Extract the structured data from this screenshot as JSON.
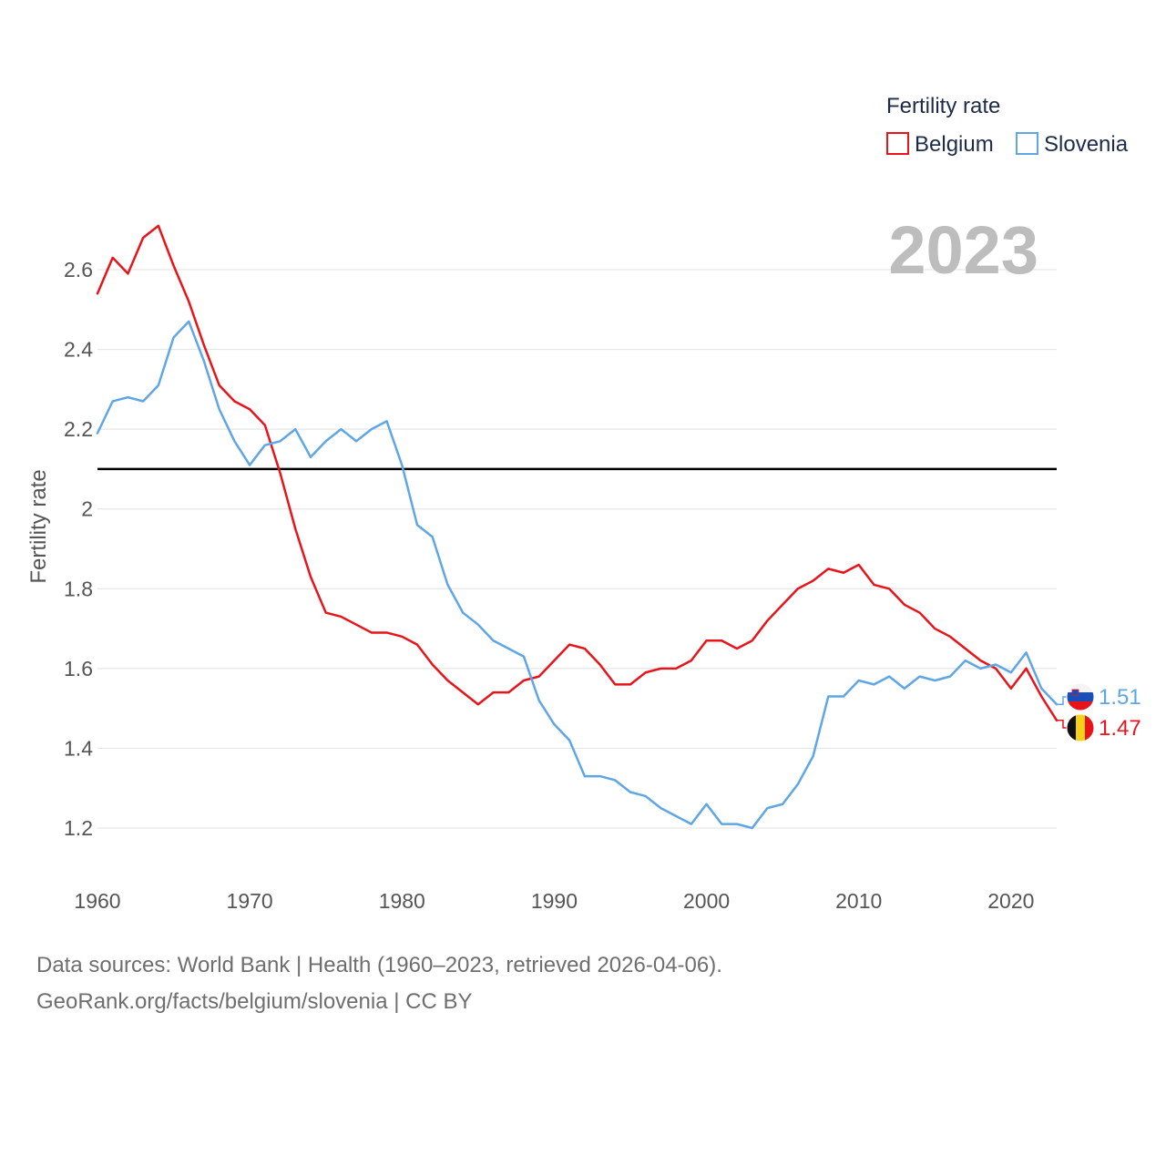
{
  "chart_data": {
    "type": "line",
    "legend_title": "Fertility rate",
    "legend_position": "top-right",
    "ylabel": "Fertility rate",
    "xlabel": "",
    "year_label": "2023",
    "xlim": [
      1960,
      2023
    ],
    "ylim": [
      1.1,
      2.8
    ],
    "x_ticks": [
      1960,
      1970,
      1980,
      1990,
      2000,
      2010,
      2020
    ],
    "x_tick_labels": [
      "1960",
      "1970",
      "1980",
      "1990",
      "2000",
      "2010",
      "2020"
    ],
    "y_ticks": [
      1.2,
      1.4,
      1.6,
      1.8,
      2,
      2.2,
      2.4,
      2.6
    ],
    "y_tick_labels": [
      "1.2",
      "1.4",
      "1.6",
      "1.8",
      "2",
      "2.2",
      "2.4",
      "2.6"
    ],
    "reference_line": {
      "y": 2.1,
      "color": "#000000"
    },
    "series": [
      {
        "name": "Belgium",
        "color": "#e8141a",
        "end_label": "1.47",
        "flag": "belgium-flag",
        "values": [
          2.54,
          2.63,
          2.59,
          2.68,
          2.71,
          2.61,
          2.52,
          2.41,
          2.31,
          2.27,
          2.25,
          2.21,
          2.09,
          1.95,
          1.83,
          1.74,
          1.73,
          1.71,
          1.69,
          1.69,
          1.68,
          1.66,
          1.61,
          1.57,
          1.54,
          1.51,
          1.54,
          1.54,
          1.57,
          1.58,
          1.62,
          1.66,
          1.65,
          1.61,
          1.56,
          1.56,
          1.59,
          1.6,
          1.6,
          1.62,
          1.67,
          1.67,
          1.65,
          1.67,
          1.72,
          1.76,
          1.8,
          1.82,
          1.85,
          1.84,
          1.86,
          1.81,
          1.8,
          1.76,
          1.74,
          1.7,
          1.68,
          1.65,
          1.62,
          1.6,
          1.55,
          1.6,
          1.53,
          1.47
        ]
      },
      {
        "name": "Slovenia",
        "color": "#5ea6e6",
        "end_label": "1.51",
        "flag": "slovenia-flag",
        "values": [
          2.19,
          2.27,
          2.28,
          2.27,
          2.31,
          2.43,
          2.47,
          2.37,
          2.25,
          2.17,
          2.11,
          2.16,
          2.17,
          2.2,
          2.13,
          2.17,
          2.2,
          2.17,
          2.2,
          2.22,
          2.11,
          1.96,
          1.93,
          1.81,
          1.74,
          1.71,
          1.67,
          1.65,
          1.63,
          1.52,
          1.46,
          1.42,
          1.33,
          1.33,
          1.32,
          1.29,
          1.28,
          1.25,
          1.23,
          1.21,
          1.26,
          1.21,
          1.21,
          1.2,
          1.25,
          1.26,
          1.31,
          1.38,
          1.53,
          1.53,
          1.57,
          1.56,
          1.58,
          1.55,
          1.58,
          1.57,
          1.58,
          1.62,
          1.6,
          1.61,
          1.59,
          1.64,
          1.55,
          1.51
        ]
      }
    ]
  },
  "footer": {
    "line1": "Data sources: World Bank | Health (1960–2023, retrieved 2026-04-06).",
    "line2": "GeoRank.org/facts/belgium/slovenia | CC BY"
  }
}
